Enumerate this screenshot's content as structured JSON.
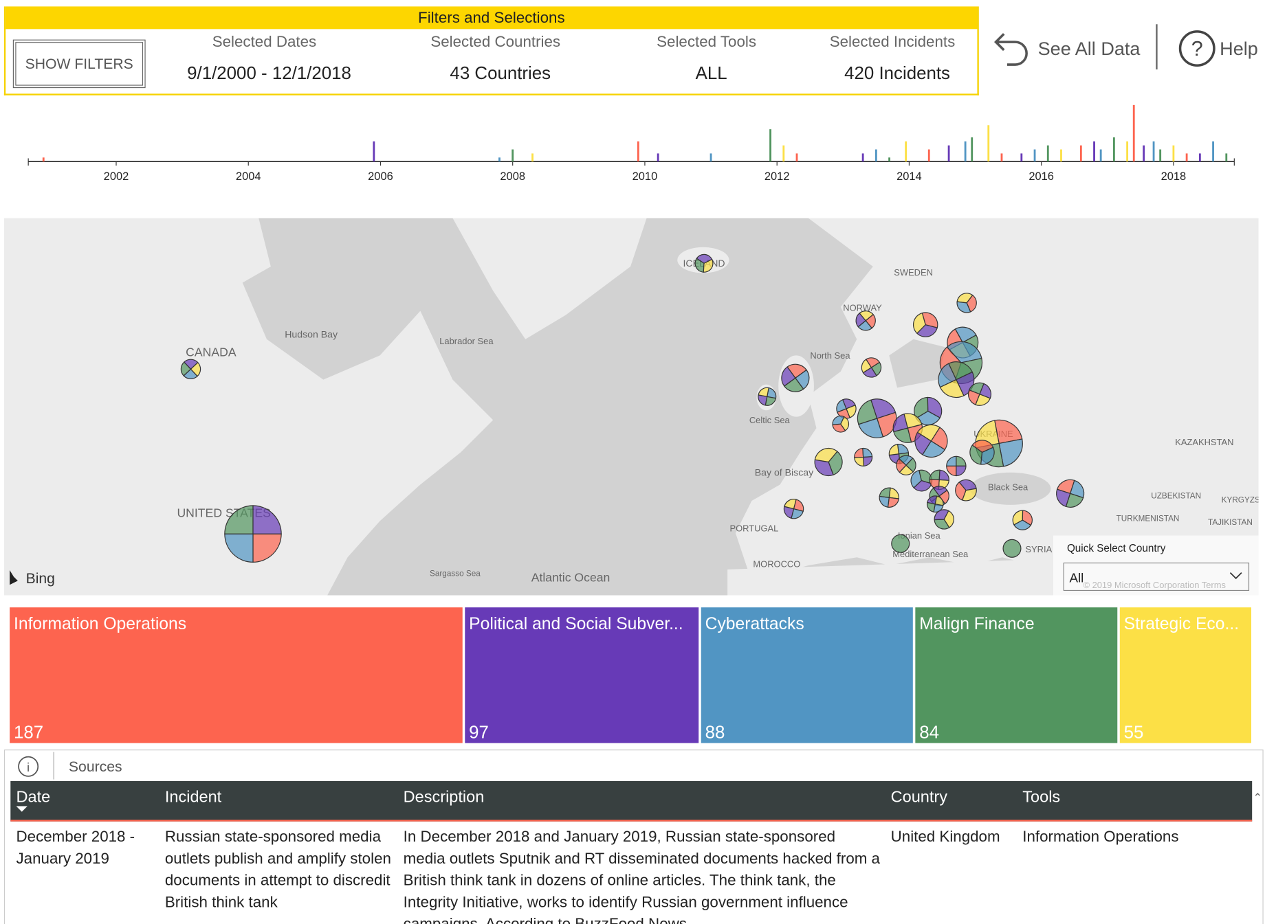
{
  "filters": {
    "title": "Filters and Selections",
    "button": "SHOW FILTERS",
    "items": [
      {
        "label": "Selected Dates",
        "value": "9/1/2000 - 12/1/2018"
      },
      {
        "label": "Selected Countries",
        "value": "43 Countries"
      },
      {
        "label": "Selected Tools",
        "value": "ALL"
      },
      {
        "label": "Selected Incidents",
        "value": "420 Incidents"
      }
    ]
  },
  "nav": {
    "see_all": "See All Data",
    "help": "Help"
  },
  "timeline": {
    "type": "bar",
    "xlim": [
      2000.67,
      2018.92
    ],
    "xticks": [
      2002,
      2004,
      2006,
      2008,
      2010,
      2012,
      2014,
      2016,
      2018
    ],
    "ylim": [
      0,
      14
    ],
    "colors": [
      "#fd644f",
      "#673ab7",
      "#5195c3",
      "#52955f",
      "#fce046"
    ],
    "x": [
      2000.9,
      2005.9,
      2007.8,
      2008.0,
      2008.3,
      2009.9,
      2010.2,
      2011.0,
      2011.9,
      2012.1,
      2012.3,
      2013.3,
      2013.5,
      2013.7,
      2013.95,
      2014.3,
      2014.6,
      2014.85,
      2014.95,
      2015.2,
      2015.4,
      2015.7,
      2015.9,
      2016.1,
      2016.3,
      2016.6,
      2016.8,
      2016.9,
      2017.1,
      2017.3,
      2017.4,
      2017.55,
      2017.7,
      2017.8,
      2018.0,
      2018.2,
      2018.4,
      2018.6,
      2018.8
    ],
    "values": [
      1,
      5,
      1,
      3,
      2,
      5,
      2,
      2,
      8,
      4,
      2,
      2,
      3,
      1,
      5,
      3,
      4,
      5,
      6,
      9,
      2,
      2,
      3,
      4,
      3,
      4,
      5,
      3,
      6,
      5,
      14,
      4,
      5,
      3,
      4,
      2,
      2,
      5,
      2
    ]
  },
  "map": {
    "labels": [
      "CANADA",
      "Hudson Bay",
      "Labrador Sea",
      "ICELAND",
      "SWEDEN",
      "NORWAY",
      "North Sea",
      "Celtic Sea",
      "Bay of Biscay",
      "PORTUGAL",
      "MOROCCO",
      "UKRAINE",
      "Black Sea",
      "SYRIA",
      "Ionian Sea",
      "Mediterranean Sea",
      "KAZAKHSTAN",
      "UZBEKISTAN",
      "TURKMENISTAN",
      "KYRGYZS",
      "TAJIKISTAN",
      "UNITED STATES",
      "Sargasso Sea",
      "Atlantic Ocean"
    ],
    "attribution": "Bing",
    "copyright": "© 2019 Microsoft Corporation Terms",
    "quick_select": {
      "label": "Quick Select Country",
      "value": "All"
    }
  },
  "treemap": {
    "categories": [
      "Information Operations",
      "Political and Social Subver...",
      "Cyberattacks",
      "Malign Finance",
      "Strategic Eco..."
    ],
    "values": [
      187,
      97,
      88,
      84,
      55
    ],
    "colors": [
      "#fd644f",
      "#673ab7",
      "#5195c3",
      "#52955f",
      "#fce046"
    ]
  },
  "table": {
    "title": "Sources",
    "columns": [
      "Date",
      "Incident",
      "Description",
      "Country",
      "Tools"
    ],
    "rows": [
      [
        "December 2018 - January 2019",
        "Russian state-sponsored media outlets publish and amplify stolen documents in attempt to discredit British think tank",
        "In December 2018 and January 2019, Russian state-sponsored media outlets Sputnik and RT disseminated documents hacked from a British think tank in dozens of online articles. The think tank, the Integrity Initiative, works to identify Russian government influence campaigns. According to BuzzFeed News",
        "United Kingdom",
        "Information Operations"
      ]
    ]
  }
}
